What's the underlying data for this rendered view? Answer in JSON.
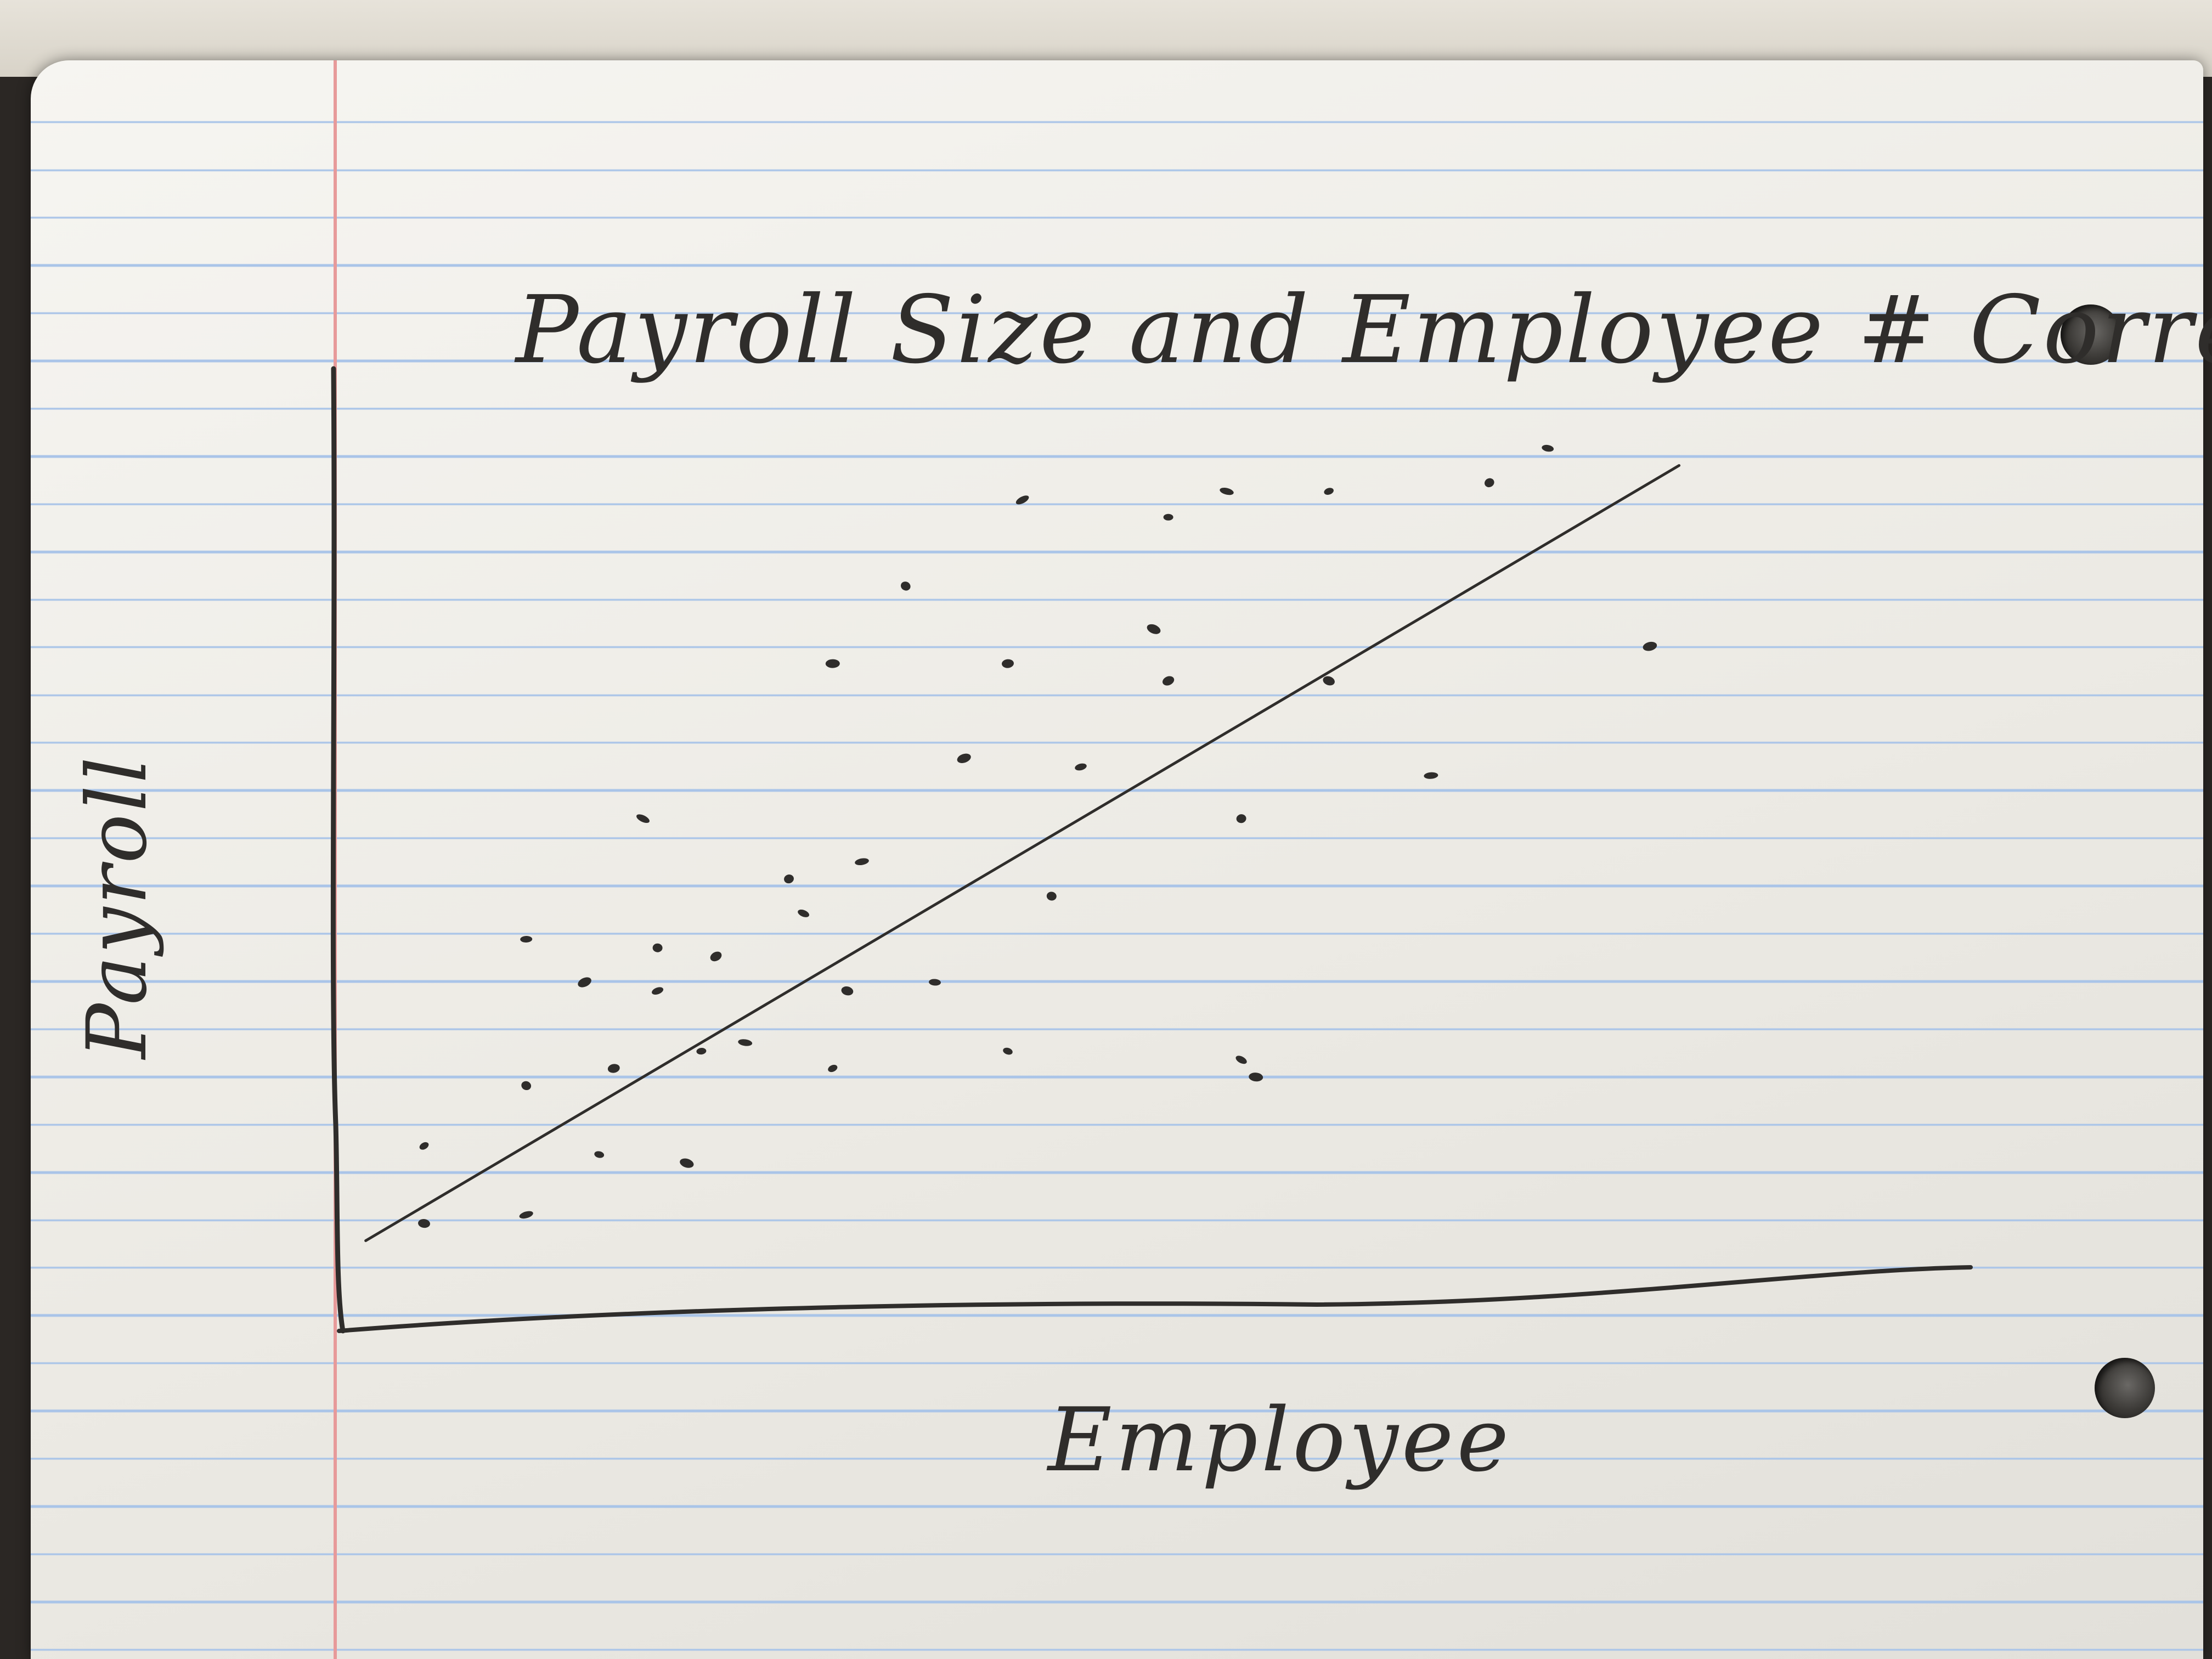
{
  "chart_data": {
    "type": "scatter",
    "title": "Payroll Size and Employee # Correlation",
    "xlabel": "Employee",
    "ylabel": "Payroll",
    "xlim": [
      0,
      100
    ],
    "ylim": [
      0,
      100
    ],
    "grid": false,
    "legend": "none",
    "series": [
      {
        "points": [
          [
            5,
            16
          ],
          [
            5,
            7
          ],
          [
            12,
            8
          ],
          [
            12,
            23
          ],
          [
            12,
            40
          ],
          [
            16,
            35
          ],
          [
            17,
            15
          ],
          [
            18,
            25
          ],
          [
            20,
            54
          ],
          [
            21,
            39
          ],
          [
            21,
            34
          ],
          [
            23,
            14
          ],
          [
            24,
            27
          ],
          [
            25,
            38
          ],
          [
            27,
            28
          ],
          [
            30,
            47
          ],
          [
            31,
            43
          ],
          [
            33,
            72
          ],
          [
            33,
            25
          ],
          [
            34,
            34
          ],
          [
            35,
            49
          ],
          [
            38,
            81
          ],
          [
            40,
            35
          ],
          [
            42,
            61
          ],
          [
            45,
            27
          ],
          [
            45,
            72
          ],
          [
            46,
            91
          ],
          [
            48,
            45
          ],
          [
            50,
            60
          ],
          [
            55,
            76
          ],
          [
            56,
            89
          ],
          [
            56,
            70
          ],
          [
            60,
            92
          ],
          [
            61,
            54
          ],
          [
            61,
            26
          ],
          [
            62,
            24
          ],
          [
            67,
            92
          ],
          [
            67,
            70
          ],
          [
            74,
            59
          ],
          [
            78,
            93
          ],
          [
            82,
            97
          ],
          [
            89,
            74
          ]
        ]
      }
    ],
    "trendline": {
      "x": [
        1,
        91
      ],
      "y": [
        5,
        95
      ]
    },
    "colors": {
      "ink": "#2f2d2b",
      "rule": "#a9c4e8",
      "margin": "#e79a9a",
      "paper": "#f3f2ee"
    }
  }
}
